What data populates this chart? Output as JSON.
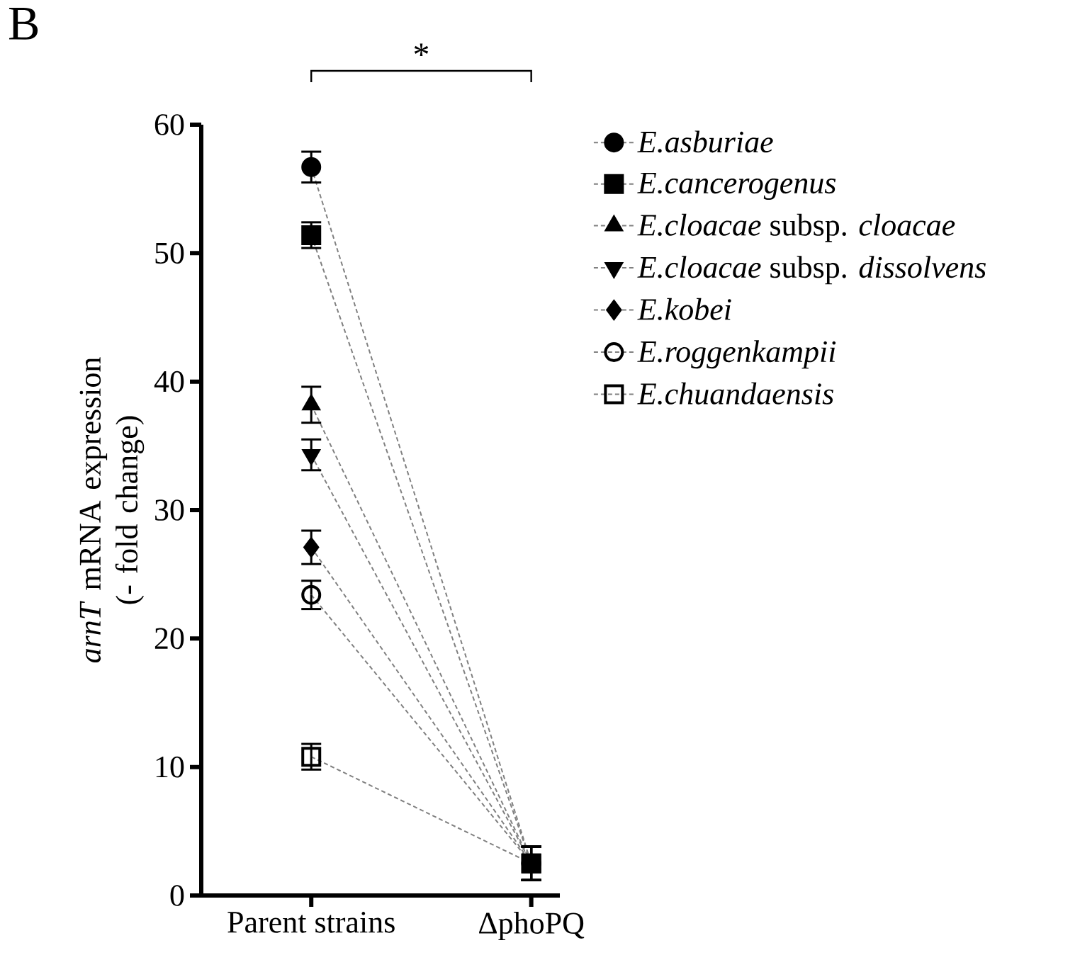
{
  "chart_data": {
    "type": "line",
    "title": "B",
    "ylabel": "*arnT* mRNA expression (- fold change)",
    "categories": [
      "Parent strains",
      "ΔphoPQ"
    ],
    "ylim": [
      0,
      60
    ],
    "yticks": [
      0,
      10,
      20,
      30,
      40,
      50,
      60
    ],
    "legend": "top right",
    "line_style": "dashed",
    "annotations": [
      "*"
    ],
    "series": [
      {
        "name": "*E.asburiae*",
        "color": "#000000",
        "marker": "circle",
        "values": [
          56.7,
          2.5
        ],
        "errors": [
          1.2,
          1.3
        ]
      },
      {
        "name": "*E.cancerogenus*",
        "color": "#000000",
        "marker": "square",
        "values": [
          51.4,
          2.5
        ],
        "errors": [
          1.0,
          1.3
        ]
      },
      {
        "name": "*E.cloacae* subsp. *cloacae*",
        "color": "#000000",
        "marker": "triangle",
        "values": [
          38.2,
          2.5
        ],
        "errors": [
          1.4,
          1.3
        ]
      },
      {
        "name": "*E.cloacae* subsp. *dissolvens*",
        "color": "#000000",
        "marker": "triangle-down",
        "values": [
          34.3,
          2.5
        ],
        "errors": [
          1.2,
          1.3
        ]
      },
      {
        "name": "*E.kobei*",
        "color": "#000000",
        "marker": "diamond",
        "values": [
          27.1,
          2.5
        ],
        "errors": [
          1.3,
          1.3
        ]
      },
      {
        "name": "*E.roggenkampii*",
        "color": "#000000",
        "marker": "circle-open",
        "values": [
          23.4,
          2.5
        ],
        "errors": [
          1.1,
          1.3
        ]
      },
      {
        "name": "*E.chuandaensis*",
        "color": "#000000",
        "marker": "square-open",
        "values": [
          10.8,
          2.5
        ],
        "errors": [
          1.0,
          1.3
        ]
      }
    ]
  }
}
